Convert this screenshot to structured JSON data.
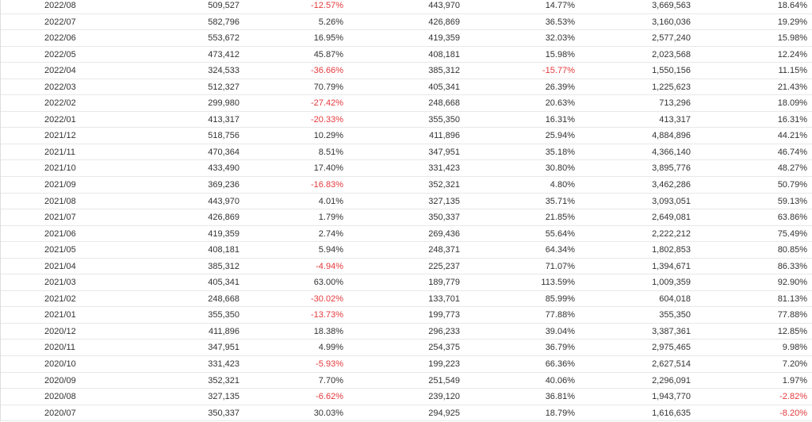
{
  "table": {
    "rows": [
      [
        "2022/08",
        "509,527",
        "-12.57%",
        "443,970",
        "14.77%",
        "3,669,563",
        "18.64%"
      ],
      [
        "2022/07",
        "582,796",
        "5.26%",
        "426,869",
        "36.53%",
        "3,160,036",
        "19.29%"
      ],
      [
        "2022/06",
        "553,672",
        "16.95%",
        "419,359",
        "32.03%",
        "2,577,240",
        "15.98%"
      ],
      [
        "2022/05",
        "473,412",
        "45.87%",
        "408,181",
        "15.98%",
        "2,023,568",
        "12.24%"
      ],
      [
        "2022/04",
        "324,533",
        "-36.66%",
        "385,312",
        "-15.77%",
        "1,550,156",
        "11.15%"
      ],
      [
        "2022/03",
        "512,327",
        "70.79%",
        "405,341",
        "26.39%",
        "1,225,623",
        "21.43%"
      ],
      [
        "2022/02",
        "299,980",
        "-27.42%",
        "248,668",
        "20.63%",
        "713,296",
        "18.09%"
      ],
      [
        "2022/01",
        "413,317",
        "-20.33%",
        "355,350",
        "16.31%",
        "413,317",
        "16.31%"
      ],
      [
        "2021/12",
        "518,756",
        "10.29%",
        "411,896",
        "25.94%",
        "4,884,896",
        "44.21%"
      ],
      [
        "2021/11",
        "470,364",
        "8.51%",
        "347,951",
        "35.18%",
        "4,366,140",
        "46.74%"
      ],
      [
        "2021/10",
        "433,490",
        "17.40%",
        "331,423",
        "30.80%",
        "3,895,776",
        "48.27%"
      ],
      [
        "2021/09",
        "369,236",
        "-16.83%",
        "352,321",
        "4.80%",
        "3,462,286",
        "50.79%"
      ],
      [
        "2021/08",
        "443,970",
        "4.01%",
        "327,135",
        "35.71%",
        "3,093,051",
        "59.13%"
      ],
      [
        "2021/07",
        "426,869",
        "1.79%",
        "350,337",
        "21.85%",
        "2,649,081",
        "63.86%"
      ],
      [
        "2021/06",
        "419,359",
        "2.74%",
        "269,436",
        "55.64%",
        "2,222,212",
        "75.49%"
      ],
      [
        "2021/05",
        "408,181",
        "5.94%",
        "248,371",
        "64.34%",
        "1,802,853",
        "80.85%"
      ],
      [
        "2021/04",
        "385,312",
        "-4.94%",
        "225,237",
        "71.07%",
        "1,394,671",
        "86.33%"
      ],
      [
        "2021/03",
        "405,341",
        "63.00%",
        "189,779",
        "113.59%",
        "1,009,359",
        "92.90%"
      ],
      [
        "2021/02",
        "248,668",
        "-30.02%",
        "133,701",
        "85.99%",
        "604,018",
        "81.13%"
      ],
      [
        "2021/01",
        "355,350",
        "-13.73%",
        "199,773",
        "77.88%",
        "355,350",
        "77.88%"
      ],
      [
        "2020/12",
        "411,896",
        "18.38%",
        "296,233",
        "39.04%",
        "3,387,361",
        "12.85%"
      ],
      [
        "2020/11",
        "347,951",
        "4.99%",
        "254,375",
        "36.79%",
        "2,975,465",
        "9.98%"
      ],
      [
        "2020/10",
        "331,423",
        "-5.93%",
        "199,223",
        "66.36%",
        "2,627,514",
        "7.20%"
      ],
      [
        "2020/09",
        "352,321",
        "7.70%",
        "251,549",
        "40.06%",
        "2,296,091",
        "1.97%"
      ],
      [
        "2020/08",
        "327,135",
        "-6.62%",
        "239,120",
        "36.81%",
        "1,943,770",
        "-2.82%"
      ],
      [
        "2020/07",
        "350,337",
        "30.03%",
        "294,925",
        "18.79%",
        "1,616,635",
        "-8.20%"
      ]
    ]
  }
}
